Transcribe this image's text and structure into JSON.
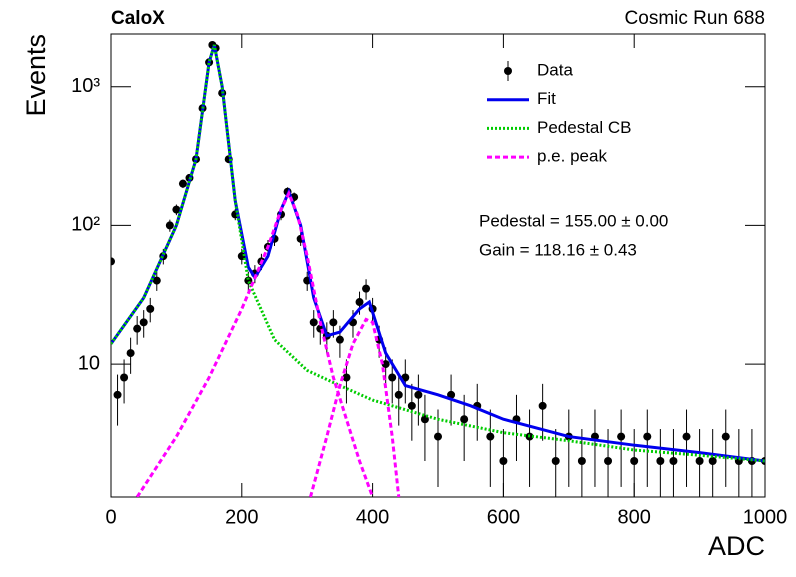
{
  "chart_data": {
    "type": "line",
    "title": "CaloX",
    "subtitle": "Cosmic Run 688",
    "x_label": "ADC",
    "y_label": "Events",
    "log_y": true,
    "legend": "top-right",
    "xlim": [
      0,
      1000
    ],
    "xticks": [
      0,
      200,
      400,
      600,
      800,
      1000
    ],
    "ylim": [
      1.1,
      2400
    ],
    "yticks": [
      10,
      {
        "value": 100,
        "label": "10²"
      },
      {
        "value": 1000,
        "label": "10³"
      }
    ],
    "annotations": [
      "Pedestal = 155.00 ± 0.00",
      "Gain = 118.16 ± 0.43"
    ],
    "series": [
      {
        "name": "Data",
        "color": "#000000",
        "style": "points",
        "x": [
          0,
          10,
          20,
          30,
          40,
          50,
          60,
          70,
          80,
          90,
          100,
          110,
          120,
          130,
          140,
          150,
          155,
          160,
          170,
          180,
          190,
          200,
          210,
          220,
          230,
          240,
          250,
          260,
          270,
          280,
          290,
          300,
          310,
          320,
          330,
          340,
          350,
          360,
          370,
          380,
          390,
          400,
          410,
          420,
          430,
          440,
          450,
          460,
          470,
          480,
          500,
          520,
          540,
          560,
          580,
          600,
          620,
          640,
          660,
          680,
          700,
          720,
          740,
          760,
          780,
          800,
          820,
          840,
          860,
          880,
          900,
          920,
          940,
          960,
          980,
          1000
        ],
        "values": [
          55,
          6,
          8,
          12,
          18,
          20,
          25,
          40,
          60,
          100,
          130,
          200,
          220,
          300,
          700,
          1500,
          2000,
          1900,
          900,
          300,
          120,
          60,
          40,
          45,
          55,
          70,
          80,
          120,
          175,
          160,
          80,
          40,
          20,
          18,
          16,
          20,
          15,
          8,
          20,
          28,
          35,
          25,
          15,
          10,
          8,
          6,
          8,
          5,
          6,
          4,
          3,
          6,
          4,
          5,
          3,
          2,
          4,
          3,
          5,
          2,
          3,
          2,
          3,
          2,
          3,
          2,
          3,
          2,
          2,
          3,
          2,
          2,
          3,
          2,
          2,
          2
        ],
        "errors": [
          7.4,
          2.4,
          2.8,
          3.5,
          4.2,
          4.5,
          5,
          6.3,
          7.7,
          10,
          11.4,
          14.1,
          14.8,
          17.3,
          26.5,
          38.7,
          44.7,
          43.6,
          30,
          17.3,
          11,
          7.7,
          6.3,
          6.7,
          7.4,
          8.4,
          8.9,
          11,
          13.2,
          12.6,
          8.9,
          6.3,
          4.5,
          4.2,
          4,
          4.5,
          3.9,
          2.8,
          4.5,
          5.3,
          5.9,
          5,
          3.9,
          3.2,
          2.8,
          2.4,
          2.8,
          2.2,
          2.4,
          2,
          1.7,
          2.4,
          2,
          2.2,
          1.7,
          1.4,
          2,
          1.7,
          2.2,
          1.4,
          1.7,
          1.4,
          1.7,
          1.4,
          1.7,
          1.4,
          1.7,
          1.4,
          1.4,
          1.7,
          1.4,
          1.4,
          1.7,
          1.4,
          1.4,
          1.4
        ]
      },
      {
        "name": "Fit",
        "color": "#0000ee",
        "style": "solid",
        "x": [
          0,
          50,
          100,
          130,
          150,
          158,
          170,
          190,
          210,
          220,
          240,
          260,
          272,
          290,
          310,
          330,
          350,
          380,
          395,
          420,
          450,
          500,
          550,
          600,
          700,
          800,
          900,
          1000
        ],
        "values": [
          14,
          30,
          100,
          300,
          1500,
          2000,
          1000,
          150,
          50,
          42,
          60,
          130,
          175,
          100,
          30,
          16,
          17,
          25,
          28,
          12,
          7,
          6,
          5,
          4,
          3,
          2.6,
          2.3,
          2
        ]
      },
      {
        "name": "Pedestal CB",
        "color": "#00cc00",
        "style": "dotted",
        "x": [
          0,
          50,
          100,
          130,
          150,
          158,
          170,
          190,
          210,
          250,
          300,
          350,
          400,
          500,
          600,
          700,
          800,
          900,
          1000
        ],
        "values": [
          14,
          30,
          100,
          300,
          1500,
          2000,
          1000,
          150,
          40,
          15,
          9,
          7,
          5.5,
          4,
          3.2,
          2.8,
          2.4,
          2.2,
          2
        ]
      },
      {
        "name": "p.e. peak",
        "color": "#ff00ff",
        "style": "dashed",
        "x": [
          40,
          100,
          150,
          200,
          240,
          260,
          272,
          285,
          300,
          320,
          340,
          360,
          380,
          400,
          345,
          305,
          330,
          350,
          370,
          390,
          400,
          415,
          430,
          440
        ],
        "values": [
          1.1,
          3,
          8,
          25,
          70,
          130,
          170,
          120,
          60,
          20,
          8,
          4,
          2,
          1.1,
          null,
          1.1,
          3,
          7,
          14,
          21,
          20,
          10,
          3,
          1.1
        ]
      }
    ]
  }
}
